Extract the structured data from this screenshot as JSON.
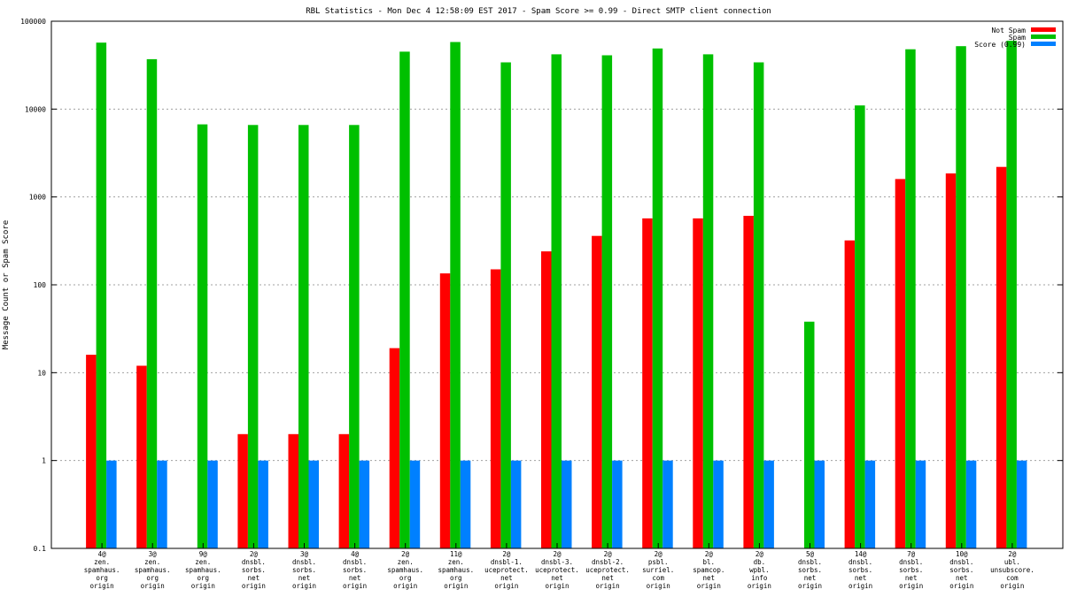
{
  "chart_data": {
    "type": "bar",
    "title": "RBL Statistics - Mon Dec  4 12:58:09 EST 2017 - Spam Score >= 0.99 - Direct SMTP client connection",
    "xlabel": "",
    "ylabel": "Message Count or Spam Score",
    "yscale": "log",
    "ylim": [
      0.1,
      100000
    ],
    "yticks": [
      {
        "value": 0.1,
        "label": "0.1"
      },
      {
        "value": 1,
        "label": "1"
      },
      {
        "value": 10,
        "label": "10"
      },
      {
        "value": 100,
        "label": "100"
      },
      {
        "value": 1000,
        "label": "1000"
      },
      {
        "value": 10000,
        "label": "10000"
      },
      {
        "value": 100000,
        "label": "100000"
      }
    ],
    "grid": true,
    "legend_position": "top-right",
    "categories": [
      [
        "4@",
        "zen.",
        "spamhaus.",
        "org",
        "origin"
      ],
      [
        "3@",
        "zen.",
        "spamhaus.",
        "org",
        "origin"
      ],
      [
        "9@",
        "zen.",
        "spamhaus.",
        "org",
        "origin"
      ],
      [
        "2@",
        "dnsbl.",
        "sorbs.",
        "net",
        "origin"
      ],
      [
        "3@",
        "dnsbl.",
        "sorbs.",
        "net",
        "origin"
      ],
      [
        "4@",
        "dnsbl.",
        "sorbs.",
        "net",
        "origin"
      ],
      [
        "2@",
        "zen.",
        "spamhaus.",
        "org",
        "origin"
      ],
      [
        "11@",
        "zen.",
        "spamhaus.",
        "org",
        "origin"
      ],
      [
        "2@",
        "dnsbl-1.",
        "uceprotect.",
        "net",
        "origin"
      ],
      [
        "2@",
        "dnsbl-3.",
        "uceprotect.",
        "net",
        "origin"
      ],
      [
        "2@",
        "dnsbl-2.",
        "uceprotect.",
        "net",
        "origin"
      ],
      [
        "2@",
        "psbl.",
        "surriel.",
        "com",
        "origin"
      ],
      [
        "2@",
        "bl.",
        "spamcop.",
        "net",
        "origin"
      ],
      [
        "2@",
        "db.",
        "wpbl.",
        "info",
        "origin"
      ],
      [
        "5@",
        "dnsbl.",
        "sorbs.",
        "net",
        "origin"
      ],
      [
        "14@",
        "dnsbl.",
        "sorbs.",
        "net",
        "origin"
      ],
      [
        "7@",
        "dnsbl.",
        "sorbs.",
        "net",
        "origin"
      ],
      [
        "10@",
        "dnsbl.",
        "sorbs.",
        "net",
        "origin"
      ],
      [
        "2@",
        "ubl.",
        "unsubscore.",
        "com",
        "origin"
      ]
    ],
    "series": [
      {
        "name": "Not Spam",
        "color": "#ff0000",
        "values": [
          16,
          12,
          null,
          2,
          2,
          2,
          19,
          135,
          150,
          240,
          360,
          570,
          570,
          610,
          null,
          320,
          1600,
          1850,
          2200
        ]
      },
      {
        "name": "Spam",
        "color": "#00c000",
        "values": [
          57000,
          37000,
          6700,
          6600,
          6600,
          6600,
          45000,
          58000,
          34000,
          42000,
          41000,
          49000,
          42000,
          34000,
          38,
          11000,
          48000,
          52000,
          60000
        ]
      },
      {
        "name": "Score (0.99)",
        "color": "#0080ff",
        "values": [
          1,
          1,
          1,
          1,
          1,
          1,
          1,
          1,
          1,
          1,
          1,
          1,
          1,
          1,
          1,
          1,
          1,
          1,
          1
        ]
      }
    ]
  }
}
